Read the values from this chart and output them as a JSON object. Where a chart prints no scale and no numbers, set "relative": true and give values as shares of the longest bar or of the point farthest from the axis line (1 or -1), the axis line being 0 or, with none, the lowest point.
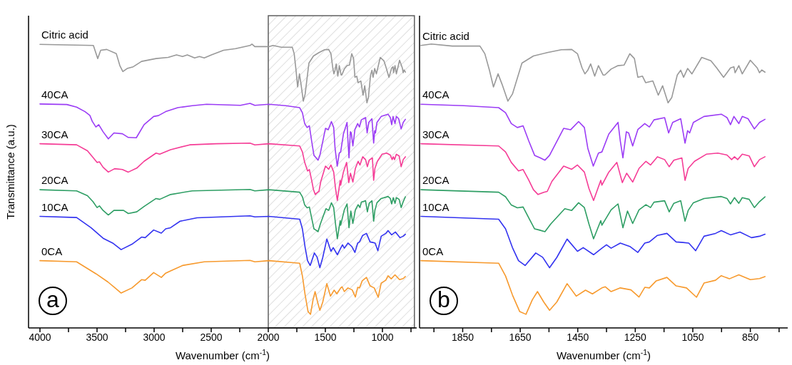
{
  "chart_data": [
    {
      "type": "line",
      "xlabel": "Wavenumber (cm$^{-1}$)",
      "ylabel": "Transmittance (a.u.)",
      "relative": true,
      "xlim": [
        4100,
        700
      ],
      "xticks": [
        4000,
        {
          "value": 3750,
          "label": null
        },
        3500,
        {
          "value": 3250,
          "label": null
        },
        3000,
        {
          "value": 2750,
          "label": null
        },
        2500,
        {
          "value": 2250,
          "label": null
        },
        2000,
        {
          "value": 1750,
          "label": null
        },
        1500,
        {
          "value": 1250,
          "label": null
        },
        1000,
        {
          "value": 750,
          "label": null
        }
      ],
      "annotations": [
        "a"
      ],
      "bands": [
        {
          "axis": "x",
          "from": 2000,
          "to": 720,
          "color": "#606060"
        }
      ],
      "series": [
        {
          "name": "Citric acid",
          "color": "#999999",
          "x": [
            4000,
            3532,
            3494,
            3468,
            3415,
            3331,
            3300,
            3274,
            3236,
            3183,
            3110,
            2983,
            2877,
            2804,
            2751,
            2709,
            2645,
            2603,
            2561,
            2498,
            2392,
            2287,
            2160,
            2143,
            2118,
            1995,
            1959,
            1886,
            1790,
            1773,
            1757,
            1743,
            1727,
            1713,
            1693,
            1677,
            1644,
            1604,
            1556,
            1507,
            1471,
            1451,
            1435,
            1425,
            1415,
            1405,
            1391,
            1378,
            1362,
            1356,
            1334,
            1310,
            1289,
            1269,
            1253,
            1241,
            1225,
            1214,
            1189,
            1170,
            1155,
            1136,
            1123,
            1104,
            1092,
            1082,
            1068,
            1053,
            1019,
            987,
            967,
            943,
            919,
            907,
            903,
            890,
            878,
            850,
            826,
            818,
            810,
            799
          ],
          "values": [
            0.999,
            0.995,
            0.949,
            0.978,
            0.981,
            0.966,
            0.924,
            0.903,
            0.914,
            0.92,
            0.939,
            0.949,
            0.953,
            0.962,
            0.956,
            0.962,
            0.951,
            0.956,
            0.951,
            0.962,
            0.978,
            0.984,
            0.995,
            1.0,
            0.991,
            0.991,
            0.995,
            0.989,
            0.989,
            0.966,
            0.908,
            0.849,
            0.895,
            0.858,
            0.799,
            0.824,
            0.933,
            0.958,
            0.97,
            0.98,
            0.981,
            0.966,
            0.916,
            0.895,
            0.908,
            0.93,
            0.887,
            0.924,
            0.891,
            0.891,
            0.912,
            0.924,
            0.926,
            0.966,
            0.949,
            0.883,
            0.887,
            0.864,
            0.87,
            0.82,
            0.853,
            0.793,
            0.812,
            0.891,
            0.908,
            0.883,
            0.914,
            0.895,
            0.953,
            0.941,
            0.916,
            0.883,
            0.916,
            0.92,
            0.899,
            0.924,
            0.895,
            0.943,
            0.916,
            0.899,
            0.909,
            0.901
          ]
        },
        {
          "name": "40CA",
          "color": "#9b3cf5",
          "x": [
            4000,
            3764,
            3679,
            3605,
            3563,
            3542,
            3510,
            3485,
            3447,
            3401,
            3352,
            3278,
            3226,
            3156,
            3088,
            3004,
            2962,
            2899,
            2793,
            2666,
            2540,
            2244,
            2160,
            2118,
            1995,
            1846,
            1725,
            1701,
            1681,
            1660,
            1640,
            1620,
            1600,
            1580,
            1564,
            1548,
            1499,
            1475,
            1447,
            1427,
            1415,
            1396,
            1378,
            1366,
            1342,
            1310,
            1302,
            1293,
            1281,
            1273,
            1259,
            1241,
            1217,
            1201,
            1185,
            1148,
            1134,
            1120,
            1092,
            1077,
            1068,
            1061,
            1048,
            1011,
            951,
            931,
            919,
            907,
            890,
            878,
            858,
            836,
            818,
            799
          ],
          "values": [
            0.789,
            0.787,
            0.778,
            0.762,
            0.749,
            0.728,
            0.708,
            0.716,
            0.691,
            0.666,
            0.687,
            0.684,
            0.671,
            0.67,
            0.716,
            0.745,
            0.748,
            0.762,
            0.776,
            0.783,
            0.788,
            0.784,
            0.791,
            0.784,
            0.788,
            0.783,
            0.776,
            0.758,
            0.72,
            0.706,
            0.712,
            0.658,
            0.608,
            0.599,
            0.591,
            0.608,
            0.703,
            0.698,
            0.727,
            0.706,
            0.633,
            0.57,
            0.616,
            0.62,
            0.683,
            0.724,
            0.658,
            0.599,
            0.691,
            0.687,
            0.641,
            0.699,
            0.72,
            0.708,
            0.733,
            0.741,
            0.687,
            0.724,
            0.737,
            0.651,
            0.695,
            0.687,
            0.724,
            0.745,
            0.753,
            0.741,
            0.716,
            0.745,
            0.72,
            0.745,
            0.737,
            0.701,
            0.724,
            0.735
          ]
        },
        {
          "name": "30CA",
          "color": "#f53c96",
          "x": [
            4000,
            3679,
            3584,
            3532,
            3500,
            3479,
            3447,
            3401,
            3346,
            3278,
            3226,
            3152,
            3088,
            2983,
            2951,
            2856,
            2688,
            2456,
            2160,
            2118,
            1995,
            1725,
            1701,
            1681,
            1656,
            1640,
            1620,
            1604,
            1588,
            1568,
            1556,
            1540,
            1499,
            1471,
            1451,
            1427,
            1411,
            1395,
            1370,
            1366,
            1342,
            1314,
            1295,
            1280,
            1259,
            1237,
            1213,
            1197,
            1173,
            1148,
            1132,
            1116,
            1088,
            1077,
            1066,
            1044,
            1003,
            963,
            931,
            915,
            905,
            894,
            878,
            854,
            836,
            818,
            799
          ],
          "values": [
            0.649,
            0.645,
            0.624,
            0.599,
            0.583,
            0.585,
            0.566,
            0.549,
            0.561,
            0.558,
            0.549,
            0.563,
            0.587,
            0.616,
            0.612,
            0.628,
            0.645,
            0.649,
            0.651,
            0.645,
            0.649,
            0.641,
            0.62,
            0.583,
            0.553,
            0.558,
            0.52,
            0.487,
            0.47,
            0.478,
            0.481,
            0.516,
            0.57,
            0.559,
            0.574,
            0.549,
            0.491,
            0.449,
            0.52,
            0.503,
            0.549,
            0.583,
            0.512,
            0.545,
            0.514,
            0.562,
            0.587,
            0.574,
            0.603,
            0.593,
            0.568,
            0.591,
            0.599,
            0.52,
            0.562,
            0.587,
            0.612,
            0.616,
            0.609,
            0.593,
            0.603,
            0.593,
            0.612,
            0.606,
            0.568,
            0.593,
            0.603
          ]
        },
        {
          "name": "20CA",
          "color": "#2e9e64",
          "x": [
            4000,
            3679,
            3584,
            3536,
            3500,
            3479,
            3447,
            3401,
            3352,
            3268,
            3226,
            3152,
            3088,
            2983,
            2951,
            2856,
            2666,
            2160,
            2118,
            1995,
            1725,
            1701,
            1681,
            1660,
            1640,
            1620,
            1600,
            1584,
            1564,
            1544,
            1495,
            1471,
            1447,
            1427,
            1411,
            1395,
            1370,
            1366,
            1334,
            1310,
            1293,
            1277,
            1259,
            1237,
            1213,
            1197,
            1185,
            1148,
            1132,
            1116,
            1092,
            1077,
            1066,
            1048,
            1011,
            951,
            931,
            919,
            905,
            890,
            878,
            854,
            836,
            818,
            799
          ],
          "values": [
            0.487,
            0.483,
            0.466,
            0.445,
            0.424,
            0.43,
            0.414,
            0.398,
            0.414,
            0.414,
            0.403,
            0.409,
            0.428,
            0.456,
            0.453,
            0.47,
            0.483,
            0.488,
            0.483,
            0.487,
            0.478,
            0.462,
            0.433,
            0.423,
            0.426,
            0.387,
            0.349,
            0.345,
            0.339,
            0.366,
            0.42,
            0.414,
            0.441,
            0.424,
            0.366,
            0.314,
            0.378,
            0.362,
            0.416,
            0.437,
            0.353,
            0.412,
            0.368,
            0.416,
            0.434,
            0.424,
            0.443,
            0.448,
            0.409,
            0.439,
            0.448,
            0.376,
            0.414,
            0.441,
            0.456,
            0.463,
            0.456,
            0.437,
            0.459,
            0.439,
            0.459,
            0.453,
            0.424,
            0.445,
            0.462
          ]
        },
        {
          "name": "10CA",
          "color": "#3333f0",
          "x": [
            4000,
            3679,
            3553,
            3447,
            3363,
            3289,
            3194,
            3110,
            3078,
            3004,
            2937,
            2899,
            2856,
            2772,
            2624,
            2160,
            2118,
            1995,
            1725,
            1701,
            1677,
            1656,
            1633,
            1596,
            1572,
            1548,
            1523,
            1487,
            1451,
            1431,
            1395,
            1366,
            1350,
            1334,
            1302,
            1269,
            1241,
            1217,
            1201,
            1173,
            1140,
            1108,
            1084,
            1064,
            1040,
            1011,
            971,
            951,
            919,
            886,
            846,
            818,
            799
          ],
          "values": [
            0.393,
            0.389,
            0.353,
            0.316,
            0.299,
            0.276,
            0.295,
            0.32,
            0.318,
            0.345,
            0.334,
            0.349,
            0.353,
            0.376,
            0.388,
            0.395,
            0.391,
            0.393,
            0.383,
            0.349,
            0.283,
            0.237,
            0.22,
            0.264,
            0.249,
            0.212,
            0.248,
            0.313,
            0.27,
            0.283,
            0.258,
            0.281,
            0.293,
            0.281,
            0.299,
            0.287,
            0.266,
            0.299,
            0.303,
            0.326,
            0.333,
            0.303,
            0.301,
            0.299,
            0.272,
            0.323,
            0.333,
            0.343,
            0.328,
            0.338,
            0.318,
            0.323,
            0.33
          ]
        },
        {
          "name": "0CA",
          "color": "#f79a2e",
          "x": [
            4000,
            3679,
            3510,
            3405,
            3342,
            3289,
            3194,
            3110,
            3078,
            3004,
            2937,
            2899,
            2856,
            2751,
            2561,
            2160,
            2118,
            1995,
            1725,
            1701,
            1677,
            1652,
            1630,
            1608,
            1590,
            1568,
            1548,
            1523,
            1487,
            1455,
            1423,
            1399,
            1366,
            1354,
            1334,
            1302,
            1265,
            1237,
            1217,
            1201,
            1177,
            1140,
            1108,
            1072,
            1037,
            1011,
            971,
            951,
            923,
            890,
            850,
            818,
            799
          ],
          "values": [
            0.237,
            0.233,
            0.191,
            0.162,
            0.141,
            0.123,
            0.141,
            0.17,
            0.168,
            0.195,
            0.178,
            0.193,
            0.201,
            0.22,
            0.233,
            0.238,
            0.233,
            0.237,
            0.228,
            0.183,
            0.116,
            0.058,
            0.048,
            0.099,
            0.128,
            0.091,
            0.062,
            0.091,
            0.156,
            0.112,
            0.133,
            0.12,
            0.141,
            0.145,
            0.128,
            0.141,
            0.134,
            0.109,
            0.143,
            0.141,
            0.166,
            0.178,
            0.148,
            0.141,
            0.108,
            0.158,
            0.168,
            0.184,
            0.173,
            0.187,
            0.17,
            0.174,
            0.181
          ]
        }
      ]
    },
    {
      "type": "line",
      "xlabel": "Wavenumber (cm$^{-1}$)",
      "relative": true,
      "xlim": [
        2000,
        720
      ],
      "xticks": [
        {
          "value": 1950,
          "label": null
        },
        1850,
        {
          "value": 1750,
          "label": null
        },
        1650,
        {
          "value": 1550,
          "label": null
        },
        1450,
        {
          "value": 1350,
          "label": null
        },
        1250,
        {
          "value": 1150,
          "label": null
        },
        1050,
        {
          "value": 950,
          "label": null
        },
        850,
        {
          "value": 750,
          "label": null
        }
      ],
      "annotations": [
        "b"
      ],
      "series": [
        {
          "name": "Citric acid",
          "color": "#999999",
          "x": [
            1995,
            1959,
            1886,
            1790,
            1773,
            1757,
            1743,
            1727,
            1713,
            1693,
            1677,
            1644,
            1604,
            1556,
            1507,
            1471,
            1451,
            1435,
            1425,
            1415,
            1405,
            1391,
            1378,
            1362,
            1356,
            1334,
            1310,
            1289,
            1269,
            1253,
            1241,
            1225,
            1214,
            1189,
            1170,
            1155,
            1136,
            1123,
            1104,
            1092,
            1082,
            1068,
            1053,
            1019,
            987,
            967,
            943,
            919,
            907,
            903,
            890,
            878,
            850,
            826,
            818,
            810,
            799
          ],
          "values": [
            0.995,
            1.0,
            0.993,
            0.993,
            0.966,
            0.908,
            0.849,
            0.895,
            0.858,
            0.799,
            0.824,
            0.933,
            0.958,
            0.97,
            0.98,
            0.981,
            0.966,
            0.916,
            0.895,
            0.908,
            0.93,
            0.887,
            0.924,
            0.891,
            0.891,
            0.912,
            0.924,
            0.926,
            0.966,
            0.949,
            0.883,
            0.887,
            0.864,
            0.87,
            0.82,
            0.853,
            0.793,
            0.812,
            0.891,
            0.908,
            0.883,
            0.914,
            0.895,
            0.953,
            0.941,
            0.916,
            0.883,
            0.916,
            0.92,
            0.899,
            0.924,
            0.895,
            0.943,
            0.916,
            0.899,
            0.909,
            0.901
          ]
        },
        {
          "name": "40CA",
          "color": "#9b3cf5",
          "x": [
            1995,
            1846,
            1725,
            1701,
            1681,
            1660,
            1640,
            1620,
            1600,
            1580,
            1564,
            1548,
            1499,
            1475,
            1447,
            1427,
            1415,
            1396,
            1378,
            1366,
            1342,
            1310,
            1302,
            1293,
            1281,
            1273,
            1259,
            1241,
            1217,
            1201,
            1185,
            1148,
            1134,
            1120,
            1092,
            1077,
            1068,
            1061,
            1048,
            1011,
            951,
            931,
            919,
            907,
            890,
            878,
            858,
            836,
            818,
            799
          ],
          "values": [
            0.788,
            0.783,
            0.776,
            0.758,
            0.72,
            0.706,
            0.712,
            0.658,
            0.608,
            0.599,
            0.591,
            0.608,
            0.703,
            0.698,
            0.727,
            0.706,
            0.633,
            0.57,
            0.616,
            0.62,
            0.683,
            0.724,
            0.658,
            0.599,
            0.691,
            0.687,
            0.641,
            0.699,
            0.72,
            0.708,
            0.733,
            0.741,
            0.687,
            0.724,
            0.737,
            0.651,
            0.695,
            0.687,
            0.724,
            0.745,
            0.753,
            0.741,
            0.716,
            0.745,
            0.72,
            0.745,
            0.737,
            0.701,
            0.724,
            0.735
          ]
        },
        {
          "name": "30CA",
          "color": "#f53c96",
          "x": [
            1995,
            1725,
            1701,
            1681,
            1656,
            1640,
            1620,
            1604,
            1588,
            1568,
            1556,
            1540,
            1499,
            1471,
            1451,
            1427,
            1411,
            1395,
            1370,
            1366,
            1342,
            1314,
            1295,
            1280,
            1259,
            1237,
            1213,
            1197,
            1173,
            1148,
            1132,
            1116,
            1088,
            1077,
            1066,
            1044,
            1003,
            963,
            931,
            915,
            905,
            894,
            878,
            854,
            836,
            818,
            799
          ],
          "values": [
            0.649,
            0.641,
            0.62,
            0.583,
            0.553,
            0.558,
            0.52,
            0.487,
            0.47,
            0.478,
            0.481,
            0.516,
            0.57,
            0.559,
            0.574,
            0.549,
            0.491,
            0.449,
            0.52,
            0.503,
            0.549,
            0.583,
            0.512,
            0.545,
            0.514,
            0.562,
            0.587,
            0.574,
            0.603,
            0.593,
            0.568,
            0.591,
            0.599,
            0.52,
            0.562,
            0.587,
            0.612,
            0.616,
            0.609,
            0.593,
            0.603,
            0.593,
            0.612,
            0.606,
            0.568,
            0.593,
            0.603
          ]
        },
        {
          "name": "20CA",
          "color": "#2e9e64",
          "x": [
            1995,
            1725,
            1701,
            1681,
            1660,
            1640,
            1620,
            1600,
            1584,
            1564,
            1544,
            1495,
            1471,
            1447,
            1427,
            1411,
            1395,
            1370,
            1366,
            1334,
            1310,
            1293,
            1277,
            1259,
            1237,
            1213,
            1197,
            1185,
            1148,
            1132,
            1116,
            1092,
            1077,
            1066,
            1048,
            1011,
            951,
            931,
            919,
            905,
            890,
            878,
            854,
            836,
            818,
            799
          ],
          "values": [
            0.487,
            0.478,
            0.462,
            0.433,
            0.423,
            0.426,
            0.387,
            0.349,
            0.345,
            0.339,
            0.366,
            0.42,
            0.414,
            0.441,
            0.424,
            0.366,
            0.314,
            0.378,
            0.362,
            0.416,
            0.437,
            0.353,
            0.412,
            0.368,
            0.416,
            0.434,
            0.424,
            0.443,
            0.448,
            0.409,
            0.439,
            0.448,
            0.376,
            0.414,
            0.441,
            0.456,
            0.463,
            0.456,
            0.437,
            0.459,
            0.439,
            0.459,
            0.453,
            0.424,
            0.445,
            0.462
          ]
        },
        {
          "name": "10CA",
          "color": "#3333f0",
          "x": [
            1995,
            1725,
            1701,
            1677,
            1656,
            1633,
            1596,
            1572,
            1548,
            1523,
            1487,
            1451,
            1431,
            1395,
            1366,
            1350,
            1334,
            1302,
            1269,
            1241,
            1217,
            1201,
            1173,
            1140,
            1108,
            1084,
            1064,
            1040,
            1011,
            971,
            951,
            919,
            886,
            846,
            818,
            799
          ],
          "values": [
            0.393,
            0.383,
            0.349,
            0.283,
            0.237,
            0.22,
            0.264,
            0.249,
            0.212,
            0.248,
            0.313,
            0.27,
            0.283,
            0.258,
            0.281,
            0.293,
            0.281,
            0.299,
            0.287,
            0.266,
            0.299,
            0.303,
            0.326,
            0.333,
            0.303,
            0.301,
            0.299,
            0.272,
            0.323,
            0.333,
            0.343,
            0.328,
            0.338,
            0.318,
            0.323,
            0.33
          ]
        },
        {
          "name": "0CA",
          "color": "#f79a2e",
          "x": [
            1995,
            1725,
            1701,
            1677,
            1652,
            1630,
            1608,
            1590,
            1568,
            1548,
            1523,
            1487,
            1455,
            1423,
            1399,
            1366,
            1354,
            1334,
            1302,
            1265,
            1237,
            1217,
            1201,
            1177,
            1140,
            1108,
            1072,
            1037,
            1011,
            971,
            951,
            923,
            890,
            850,
            818,
            799
          ],
          "values": [
            0.237,
            0.228,
            0.183,
            0.116,
            0.058,
            0.048,
            0.099,
            0.128,
            0.091,
            0.062,
            0.091,
            0.156,
            0.112,
            0.133,
            0.12,
            0.141,
            0.145,
            0.128,
            0.141,
            0.134,
            0.109,
            0.143,
            0.141,
            0.166,
            0.178,
            0.148,
            0.141,
            0.108,
            0.158,
            0.168,
            0.184,
            0.173,
            0.187,
            0.17,
            0.174,
            0.181
          ]
        }
      ]
    }
  ]
}
